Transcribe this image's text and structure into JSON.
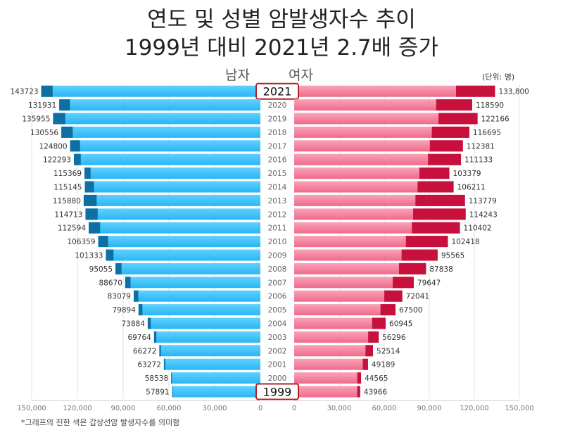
{
  "chart_data": {
    "type": "bar",
    "orientation": "horizontal-pyramid",
    "title": "연도 및 성별 암발생자수 추이",
    "subtitle": "1999년 대비 2021년 2.7배 증가",
    "unit": "(단위: 명)",
    "footnote": "*그래프의 진한 색은 갑상선암 발생자수를 의미함",
    "categories": [
      "2021",
      "2020",
      "2019",
      "2018",
      "2017",
      "2016",
      "2015",
      "2014",
      "2013",
      "2012",
      "2011",
      "2010",
      "2009",
      "2008",
      "2007",
      "2006",
      "2005",
      "2004",
      "2003",
      "2002",
      "2001",
      "2000",
      "1999"
    ],
    "highlight_years": [
      "2021",
      "1999"
    ],
    "series": [
      {
        "name": "남자",
        "color": "#29b6f6",
        "dark_color": "#0d6fa3",
        "values": [
          143723,
          131931,
          135955,
          130556,
          124800,
          122293,
          115369,
          115145,
          115880,
          114713,
          112594,
          106359,
          101333,
          95055,
          88670,
          83079,
          79894,
          73884,
          69764,
          66272,
          63272,
          58538,
          57891
        ],
        "labels": [
          "143723",
          "131931",
          "135955",
          "130556",
          "124800",
          "122293",
          "115369",
          "115145",
          "115880",
          "114713",
          "112594",
          "106359",
          "101333",
          "95055",
          "88670",
          "83079",
          "79894",
          "73884",
          "69764",
          "66272",
          "63272",
          "58538",
          "57891"
        ],
        "dark_values": [
          7500,
          7000,
          8000,
          7500,
          6500,
          4500,
          4000,
          6000,
          8500,
          8000,
          7500,
          6500,
          5000,
          4000,
          3500,
          3000,
          2500,
          2000,
          1500,
          1000,
          800,
          500,
          400
        ]
      },
      {
        "name": "여자",
        "color": "#f06a8a",
        "dark_color": "#c8103c",
        "values": [
          133800,
          118590,
          122166,
          116695,
          112381,
          111133,
          103379,
          106211,
          113779,
          114243,
          110402,
          102418,
          95565,
          87838,
          79647,
          72041,
          67500,
          60945,
          56296,
          52514,
          49189,
          44565,
          43966
        ],
        "labels": [
          "133,800",
          "118590",
          "122166",
          "116695",
          "112381",
          "111133",
          "103379",
          "106211",
          "113779",
          "114243",
          "110402",
          "102418",
          "95565",
          "87838",
          "79647",
          "72041",
          "67500",
          "60945",
          "56296",
          "52514",
          "49189",
          "44565",
          "43966"
        ],
        "dark_values": [
          26000,
          24000,
          26000,
          25000,
          22000,
          22000,
          20000,
          24000,
          33000,
          35000,
          32000,
          28000,
          24000,
          18000,
          14000,
          12000,
          10000,
          9000,
          7000,
          5000,
          3500,
          2500,
          2000
        ]
      }
    ],
    "x_axis": {
      "left_ticks": [
        "150,000",
        "120,000",
        "90,000",
        "60,000",
        "30,000",
        "0"
      ],
      "right_ticks": [
        "0",
        "30,000",
        "60,000",
        "90,000",
        "120,000",
        "150,000"
      ],
      "max": 150000
    },
    "grid": true
  }
}
